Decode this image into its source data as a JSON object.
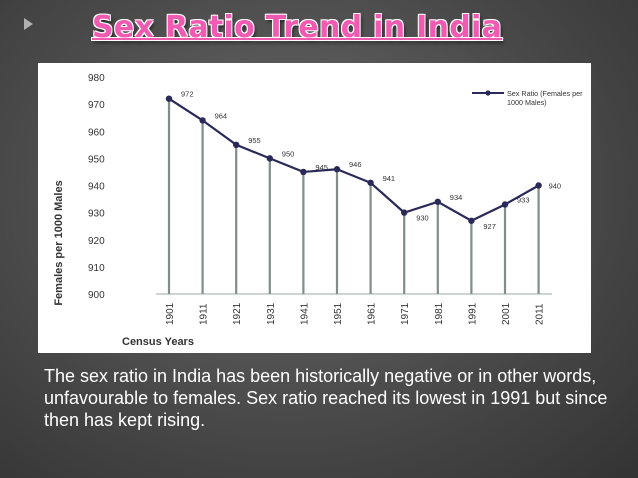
{
  "slide": {
    "title": "Sex Ratio Trend in India",
    "caption": "The sex ratio in India has been historically negative or in other words, unfavourable to females. Sex ratio reached its lowest in 1991 but since then has kept rising."
  },
  "colors": {
    "title": "#f05ab0",
    "line": "#2a2a5a",
    "drop_lines": "#7f8f88",
    "background": "#4a4a4a"
  },
  "chart_data": {
    "type": "line",
    "title": "",
    "xlabel": "Census Years",
    "ylabel": "Females per 1000 Males",
    "categories": [
      "1901",
      "1911",
      "1921",
      "1931",
      "1941",
      "1951",
      "1961",
      "1971",
      "1981",
      "1991",
      "2001",
      "2011"
    ],
    "series": [
      {
        "name": "Sex Ratio (Females per 1000 Males)",
        "values": [
          972,
          964,
          955,
          950,
          945,
          946,
          941,
          930,
          934,
          927,
          933,
          940
        ]
      }
    ],
    "data_labels": [
      "972",
      "964",
      "955",
      "950",
      "945",
      "946",
      "941",
      "930",
      "934",
      "927",
      "933",
      "940"
    ],
    "ylim": [
      900,
      980
    ],
    "yticks": [
      "900",
      "910",
      "920",
      "930",
      "940",
      "950",
      "960",
      "970",
      "980"
    ],
    "grid": false,
    "drop_lines": true,
    "legend": "top-right"
  }
}
